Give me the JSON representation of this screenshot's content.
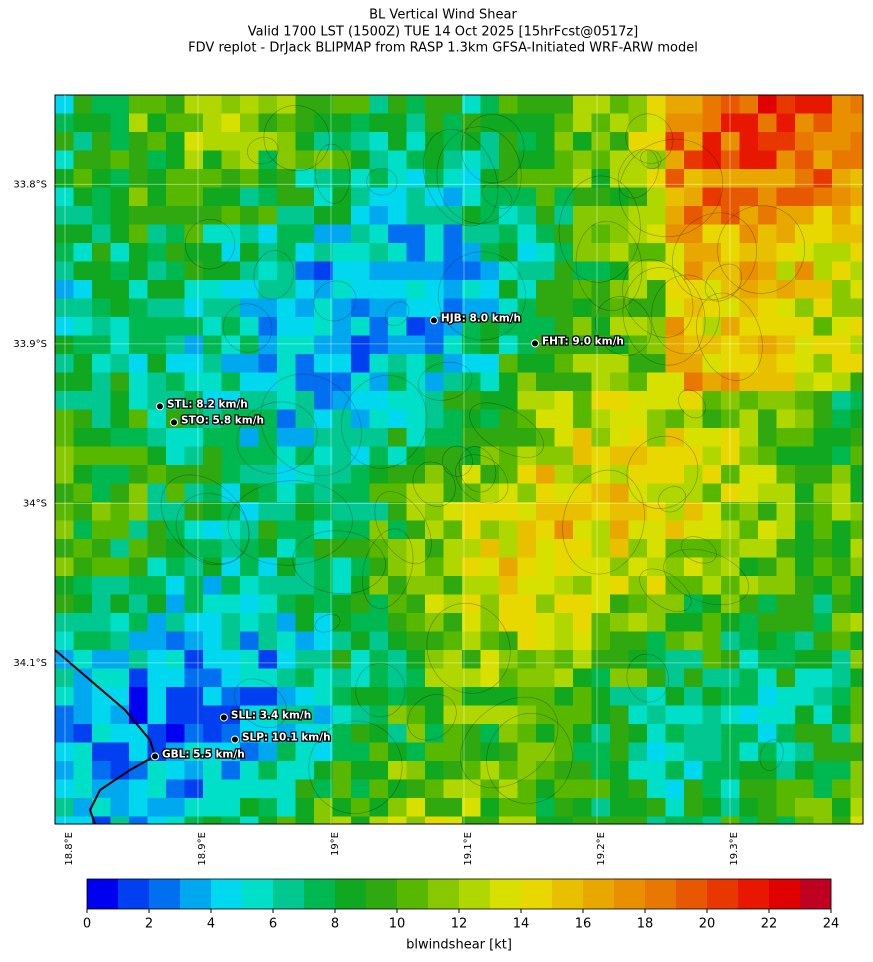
{
  "title": [
    "BL Vertical Wind Shear",
    "Valid 1700 LST (1500Z) TUE 14 Oct 2025 [15hrFcst@0517z]",
    "FDV replot - DrJack BLIPMAP from RASP 1.3km GFSA-Initiated WRF-ARW model"
  ],
  "map": {
    "xlim": [
      18.7925,
      19.4
    ],
    "ylim": [
      -34.201,
      -33.744
    ],
    "xticks": [
      {
        "value": 18.8,
        "label": "18.8°E"
      },
      {
        "value": 18.9,
        "label": "18.9°E"
      },
      {
        "value": 19.0,
        "label": "19°E"
      },
      {
        "value": 19.1,
        "label": "19.1°E"
      },
      {
        "value": 19.2,
        "label": "19.2°E"
      },
      {
        "value": 19.3,
        "label": "19.3°E"
      }
    ],
    "yticks": [
      {
        "value": -33.8,
        "label": "33.8°S"
      },
      {
        "value": -33.9,
        "label": "33.9°S"
      },
      {
        "value": -34.0,
        "label": "34°S"
      },
      {
        "value": -34.1,
        "label": "34.1°S"
      }
    ],
    "grid": true,
    "stations": [
      {
        "label": "HJB: 8.0 km/h",
        "value": 8.0,
        "lon": 19.0774,
        "lat": -33.8853
      },
      {
        "label": "FHT: 9.0 km/h",
        "value": 9.0,
        "lon": 19.1534,
        "lat": -33.8997
      },
      {
        "label": "STL: 8.2 km/h",
        "value": 8.2,
        "lon": 18.8714,
        "lat": -33.9392
      },
      {
        "label": "STO: 5.8 km/h",
        "value": 5.8,
        "lon": 18.882,
        "lat": -33.9492
      },
      {
        "label": "SLL: 3.4 km/h",
        "value": 3.4,
        "lon": 18.9195,
        "lat": -34.1342
      },
      {
        "label": "SLP: 10.1 km/h",
        "value": 10.1,
        "lon": 18.9278,
        "lat": -34.148
      },
      {
        "label": "GBL: 5.5 km/h",
        "value": 5.5,
        "lon": 18.8677,
        "lat": -34.1586
      }
    ]
  },
  "colorbar": {
    "label": "blwindshear [kt]",
    "lim": [
      0,
      24
    ],
    "ticks": [
      0,
      2,
      4,
      6,
      8,
      10,
      12,
      14,
      16,
      18,
      20,
      22,
      24
    ],
    "colors": [
      "#0000f0",
      "#0040f0",
      "#0070f0",
      "#00a8f0",
      "#00d8f0",
      "#00e0c8",
      "#00c890",
      "#00b850",
      "#10a820",
      "#30a810",
      "#58b800",
      "#88c800",
      "#b0d800",
      "#d8e000",
      "#e8d800",
      "#e8c000",
      "#e8a800",
      "#e89000",
      "#e87800",
      "#e85800",
      "#e83800",
      "#e81800",
      "#e00000",
      "#c00020"
    ]
  }
}
